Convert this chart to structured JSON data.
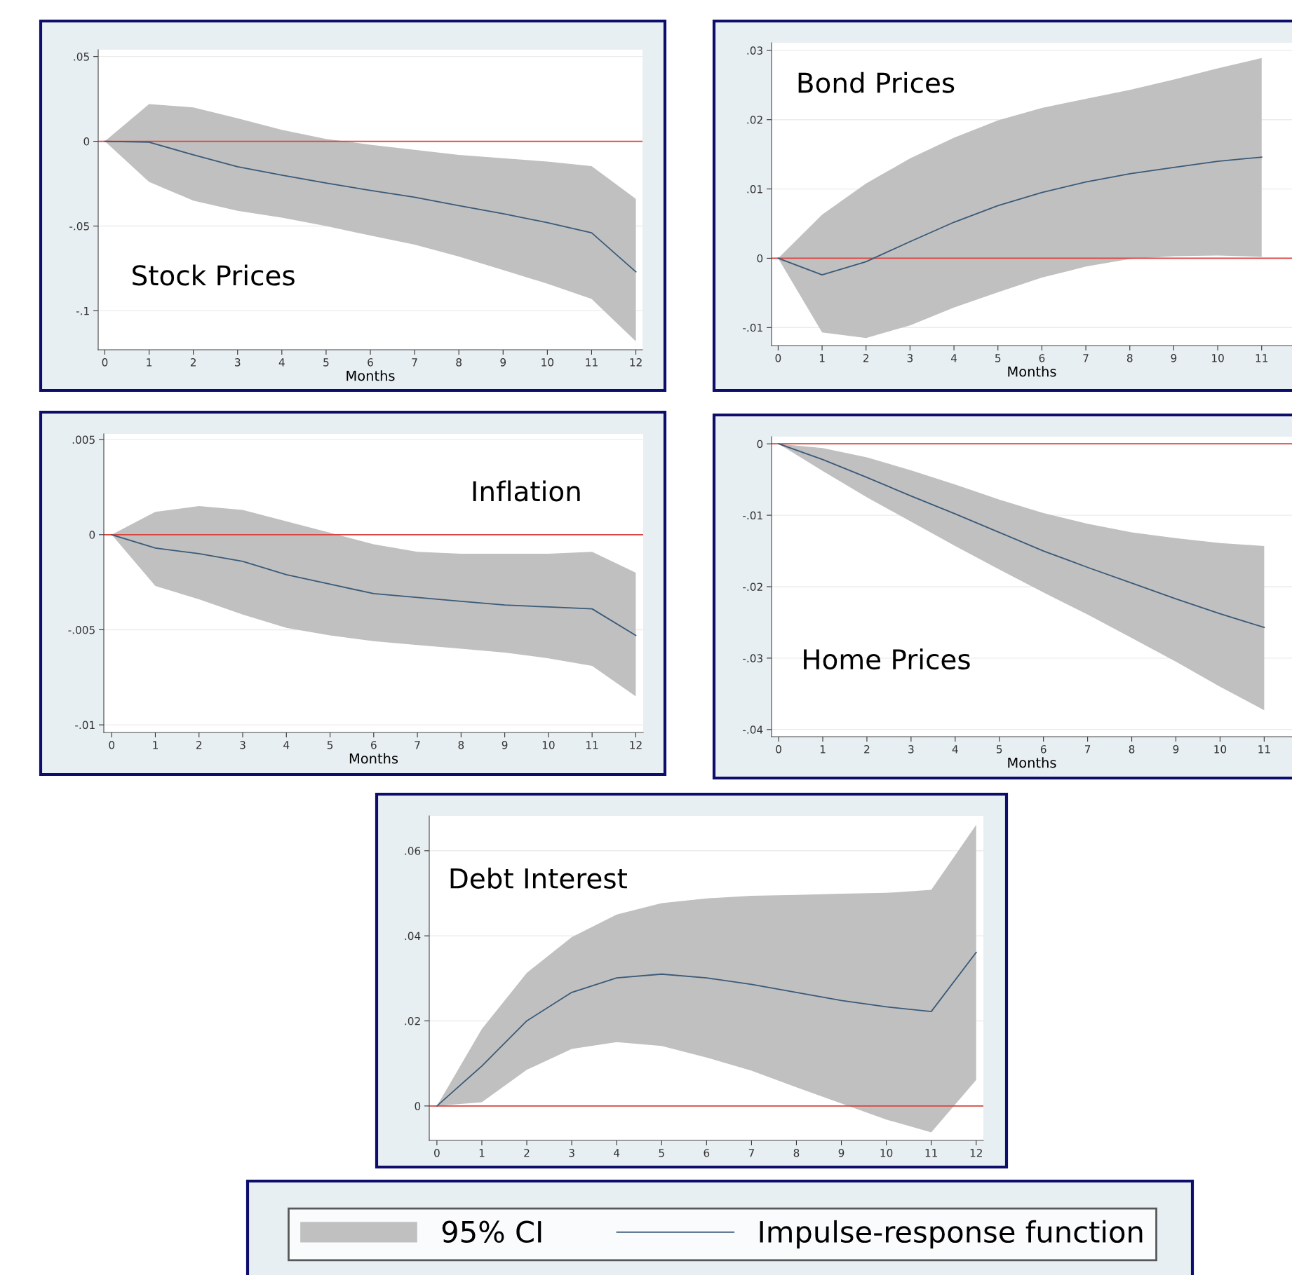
{
  "chart_data": [
    {
      "type": "line",
      "title": "Stock Prices",
      "xlabel": "Months",
      "x": [
        0,
        1,
        2,
        3,
        4,
        5,
        6,
        7,
        8,
        9,
        10,
        11,
        12
      ],
      "xlim": [
        -0.15,
        12.15
      ],
      "xticks": [
        0,
        1,
        2,
        3,
        4,
        5,
        6,
        7,
        8,
        9,
        10,
        11,
        12
      ],
      "ylim": [
        -0.123,
        0.054
      ],
      "yticks": [
        {
          "value": -0.1,
          "label": "-.1"
        },
        {
          "value": -0.05,
          "label": "-.05"
        },
        0,
        {
          "value": 0.05,
          "label": ".05"
        }
      ],
      "grid": "y",
      "ref_lines": [
        {
          "axis": "y",
          "value": 0,
          "color": "#d9433f"
        }
      ],
      "series": [
        {
          "type": "line",
          "color": "#3a5a78",
          "values": [
            0,
            -0.0005,
            -0.008,
            -0.015,
            -0.02,
            -0.0246,
            -0.029,
            -0.033,
            -0.038,
            -0.0427,
            -0.048,
            -0.054,
            -0.077
          ],
          "lower": [
            0,
            -0.024,
            -0.035,
            -0.041,
            -0.045,
            -0.05,
            -0.0556,
            -0.061,
            -0.068,
            -0.076,
            -0.084,
            -0.093,
            -0.118
          ],
          "upper": [
            0,
            0.022,
            0.02,
            0.0136,
            0.0068,
            0.0014,
            -0.002,
            -0.005,
            -0.008,
            -0.01,
            -0.012,
            -0.0146,
            -0.034
          ]
        }
      ]
    },
    {
      "type": "line",
      "title": "Bond Prices",
      "xlabel": "Months",
      "x": [
        0,
        1,
        2,
        3,
        4,
        5,
        6,
        7,
        8,
        9,
        10,
        11
      ],
      "xlim": [
        -0.15,
        11.69
      ],
      "xticks": [
        0,
        1,
        2,
        3,
        4,
        5,
        6,
        7,
        8,
        9,
        10,
        11
      ],
      "ylim": [
        -0.0126,
        0.0311
      ],
      "yticks": [
        {
          "value": -0.01,
          "label": "-.01"
        },
        0,
        {
          "value": 0.01,
          "label": ".01"
        },
        {
          "value": 0.02,
          "label": ".02"
        },
        {
          "value": 0.03,
          "label": ".03"
        }
      ],
      "grid": "y",
      "ref_lines": [
        {
          "axis": "y",
          "value": 0,
          "color": "#d9433f"
        }
      ],
      "series": [
        {
          "type": "line",
          "color": "#3a5a78",
          "values": [
            0,
            -0.0024,
            -0.0005,
            0.0024,
            0.0052,
            0.0076,
            0.0095,
            0.011,
            0.0122,
            0.0131,
            0.014,
            0.0146
          ],
          "lower": [
            0,
            -0.0107,
            -0.0115,
            -0.0097,
            -0.0071,
            -0.0049,
            -0.0028,
            -0.0012,
            -0.0001,
            0.0003,
            0.0004,
            0.0002
          ],
          "upper": [
            0,
            0.0063,
            0.0108,
            0.0144,
            0.0174,
            0.0199,
            0.0217,
            0.023,
            0.0243,
            0.0258,
            0.0274,
            0.0289
          ]
        }
      ]
    },
    {
      "type": "line",
      "title": "Inflation",
      "xlabel": "Months",
      "x": [
        0,
        1,
        2,
        3,
        4,
        5,
        6,
        7,
        8,
        9,
        10,
        11,
        12
      ],
      "xlim": [
        -0.18,
        12.17
      ],
      "xticks": [
        0,
        1,
        2,
        3,
        4,
        5,
        6,
        7,
        8,
        9,
        10,
        11,
        12
      ],
      "ylim": [
        -0.0104,
        0.0053
      ],
      "yticks": [
        {
          "value": -0.01,
          "label": "-.01"
        },
        {
          "value": -0.005,
          "label": "-.005"
        },
        0,
        {
          "value": 0.005,
          "label": ".005"
        }
      ],
      "grid": "y",
      "ref_lines": [
        {
          "axis": "y",
          "value": 0,
          "color": "#d9433f"
        }
      ],
      "series": [
        {
          "type": "line",
          "color": "#3a5a78",
          "values": [
            0,
            -0.0007,
            -0.001,
            -0.0014,
            -0.0021,
            -0.0026,
            -0.0031,
            -0.0033,
            -0.0035,
            -0.0037,
            -0.0038,
            -0.0039,
            -0.0053
          ],
          "lower": [
            0,
            -0.0027,
            -0.0034,
            -0.0042,
            -0.0049,
            -0.0053,
            -0.0056,
            -0.0058,
            -0.006,
            -0.0062,
            -0.0065,
            -0.0069,
            -0.0085
          ],
          "upper": [
            0,
            0.0012,
            0.0015,
            0.0013,
            0.0007,
            0.0001,
            -0.0005,
            -0.0009,
            -0.001,
            -0.001,
            -0.001,
            -0.0009,
            -0.002
          ]
        }
      ]
    },
    {
      "type": "line",
      "title": "Home Prices",
      "xlabel": "Months",
      "x": [
        0,
        1,
        2,
        3,
        4,
        5,
        6,
        7,
        8,
        9,
        10,
        11
      ],
      "xlim": [
        -0.16,
        11.63
      ],
      "xticks": [
        0,
        1,
        2,
        3,
        4,
        5,
        6,
        7,
        8,
        9,
        10,
        11
      ],
      "ylim": [
        -0.041,
        0.001
      ],
      "yticks": [
        {
          "value": -0.04,
          "label": "-.04"
        },
        {
          "value": -0.03,
          "label": "-.03"
        },
        {
          "value": -0.02,
          "label": "-.02"
        },
        {
          "value": -0.01,
          "label": "-.01"
        },
        0
      ],
      "grid": "y",
      "ref_lines": [
        {
          "axis": "y",
          "value": 0,
          "color": "#d9433f"
        }
      ],
      "series": [
        {
          "type": "line",
          "color": "#3a5a78",
          "values": [
            0,
            -0.0022,
            -0.0047,
            -0.0073,
            -0.0098,
            -0.0124,
            -0.015,
            -0.0173,
            -0.0195,
            -0.0217,
            -0.0238,
            -0.0257
          ],
          "lower": [
            0,
            -0.0038,
            -0.0075,
            -0.0109,
            -0.0143,
            -0.0176,
            -0.0208,
            -0.0239,
            -0.0272,
            -0.0305,
            -0.034,
            -0.0373
          ],
          "upper": [
            0,
            -0.0006,
            -0.0019,
            -0.0037,
            -0.0057,
            -0.0078,
            -0.0097,
            -0.0112,
            -0.0124,
            -0.0132,
            -0.0139,
            -0.0143
          ]
        }
      ]
    },
    {
      "type": "line",
      "title": "Debt Interest",
      "x": [
        0,
        1,
        2,
        3,
        4,
        5,
        6,
        7,
        8,
        9,
        10,
        11,
        12
      ],
      "xlim": [
        -0.17,
        12.16
      ],
      "xticks": [
        0,
        1,
        2,
        3,
        4,
        5,
        6,
        7,
        8,
        9,
        10,
        11,
        12
      ],
      "ylim": [
        -0.0081,
        0.0682
      ],
      "yticks": [
        0,
        {
          "value": 0.02,
          "label": ".02"
        },
        {
          "value": 0.04,
          "label": ".04"
        },
        {
          "value": 0.06,
          "label": ".06"
        }
      ],
      "grid": "y",
      "legend": "bottom",
      "annotations": [
        "95% CI"
      ],
      "ref_lines": [
        {
          "axis": "y",
          "value": 0,
          "color": "#d9433f"
        }
      ],
      "series": [
        {
          "type": "line",
          "name": "Impulse-response function",
          "color": "#3a5a78",
          "values": [
            0,
            0.0094,
            0.02,
            0.0267,
            0.0301,
            0.031,
            0.0301,
            0.0286,
            0.0267,
            0.0248,
            0.0233,
            0.0222,
            0.0361
          ],
          "lower": [
            0,
            0.0009,
            0.0085,
            0.0134,
            0.015,
            0.0141,
            0.0114,
            0.0083,
            0.0044,
            0.0006,
            -0.0032,
            -0.0062,
            0.0061
          ],
          "upper": [
            0,
            0.0181,
            0.0313,
            0.0397,
            0.045,
            0.0477,
            0.0488,
            0.0494,
            0.0496,
            0.0499,
            0.0501,
            0.0508,
            0.0661
          ]
        }
      ]
    }
  ]
}
